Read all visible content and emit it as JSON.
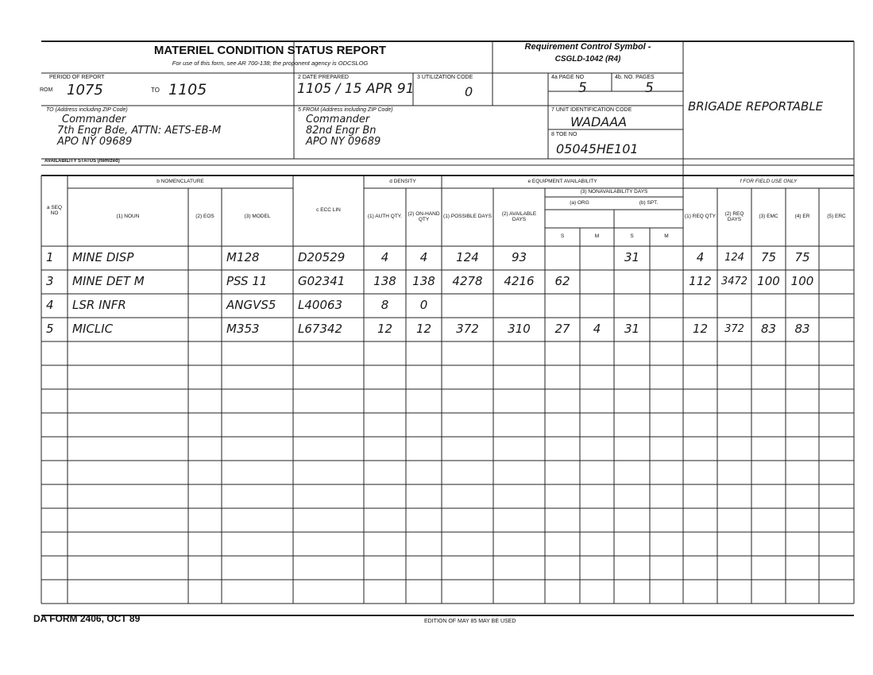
{
  "header": {
    "title": "MATERIEL CONDITION STATUS REPORT",
    "subtitle": "For use of this form, see AR 700-138; the proponent agency is ODCSLOG",
    "rcs_label": "Requirement Control Symbol -",
    "rcs": "CSGLD-1042 (R4)",
    "remark": "BRIGADE REPORTABLE"
  },
  "fields": {
    "period_label": "PERIOD OF REPORT",
    "from_label": "ROM",
    "from": "1075",
    "to_label": "TO",
    "to": "1105",
    "date_label": "2   DATE PREPARED",
    "date": "1105 / 15 APR 91",
    "util_label": "3   UTILIZATION CODE",
    "util": "0",
    "page_label": "4a   PAGE NO",
    "page": "5",
    "pages_label": "4b.  NO. PAGES",
    "pages": "5",
    "to_addr_label": "TO (Address including ZIP Code)",
    "to_addr": [
      "Commander",
      "7th Engr Bde, ATTN: AETS-EB-M",
      "APO NY 09689"
    ],
    "from_addr_label": "5   FROM (Address including ZIP Code)",
    "from_addr": [
      "Commander",
      "82nd Engr Bn",
      "APO NY 09689"
    ],
    "uic_label": "7   UNIT IDENTIFICATION CODE",
    "uic": "WADAAA",
    "toe_label": "8   TOE NO",
    "toe": "05045HE101",
    "status_label": "AVAILABILITY STATUS (Itemized)"
  },
  "table": {
    "sections": {
      "nomenclature": "b   NOMENCLATURE",
      "density": "d   DENSITY",
      "availability": "e   EQUIPMENT AVAILABILITY",
      "field": "f   FOR FIELD USE ONLY"
    },
    "sub": {
      "nonavail": "(3)  NONAVAILABILITY DAYS",
      "org": "(a)   ORG",
      "spt": "(b)   SPT."
    },
    "columns": [
      "a SEQ NO",
      "(1) NOUN",
      "(2) EOS",
      "(3) MODEL",
      "c ECC LIN",
      "(1) AUTH QTY.",
      "(2) ON-HAND QTY",
      "(1) POSSIBLE DAYS",
      "(2) AVAILABLE DAYS",
      "S",
      "M",
      "S",
      "M",
      "(1) REQ QTY",
      "(2) REQ DAYS",
      "(3) EMC",
      "(4) ER",
      "(5) ERC"
    ],
    "rows": [
      {
        "seq": "1",
        "noun": "MINE DISP",
        "model": "M128",
        "ecc": "D20529",
        "auth": "4",
        "onhand": "4",
        "possible": "124",
        "available": "93",
        "spt_s": "31",
        "req_qty": "4",
        "req_days": "124",
        "emc": "75",
        "er": "75"
      },
      {
        "seq": "3",
        "noun": "MINE DET M",
        "model": "PSS 11",
        "ecc": "G02341",
        "auth": "138",
        "onhand": "138",
        "possible": "4278",
        "available": "4216",
        "org_s": "62",
        "req_qty": "112",
        "req_days": "3472",
        "emc": "100",
        "er": "100"
      },
      {
        "seq": "4",
        "noun": "LSR INFR",
        "model": "ANGVS5",
        "ecc": "L40063",
        "auth": "8",
        "onhand": "0"
      },
      {
        "seq": "5",
        "noun": "MICLIC",
        "model": "M353",
        "ecc": "L67342",
        "auth": "12",
        "onhand": "12",
        "possible": "372",
        "available": "310",
        "org_s": "27",
        "org_m": "4",
        "spt_s": "31",
        "req_qty": "12",
        "req_days": "372",
        "emc": "83",
        "er": "83"
      }
    ]
  },
  "footer": {
    "form": "DA FORM 2406, OCT 89",
    "edition": "EDITION OF MAY 85 MAY BE USED"
  }
}
